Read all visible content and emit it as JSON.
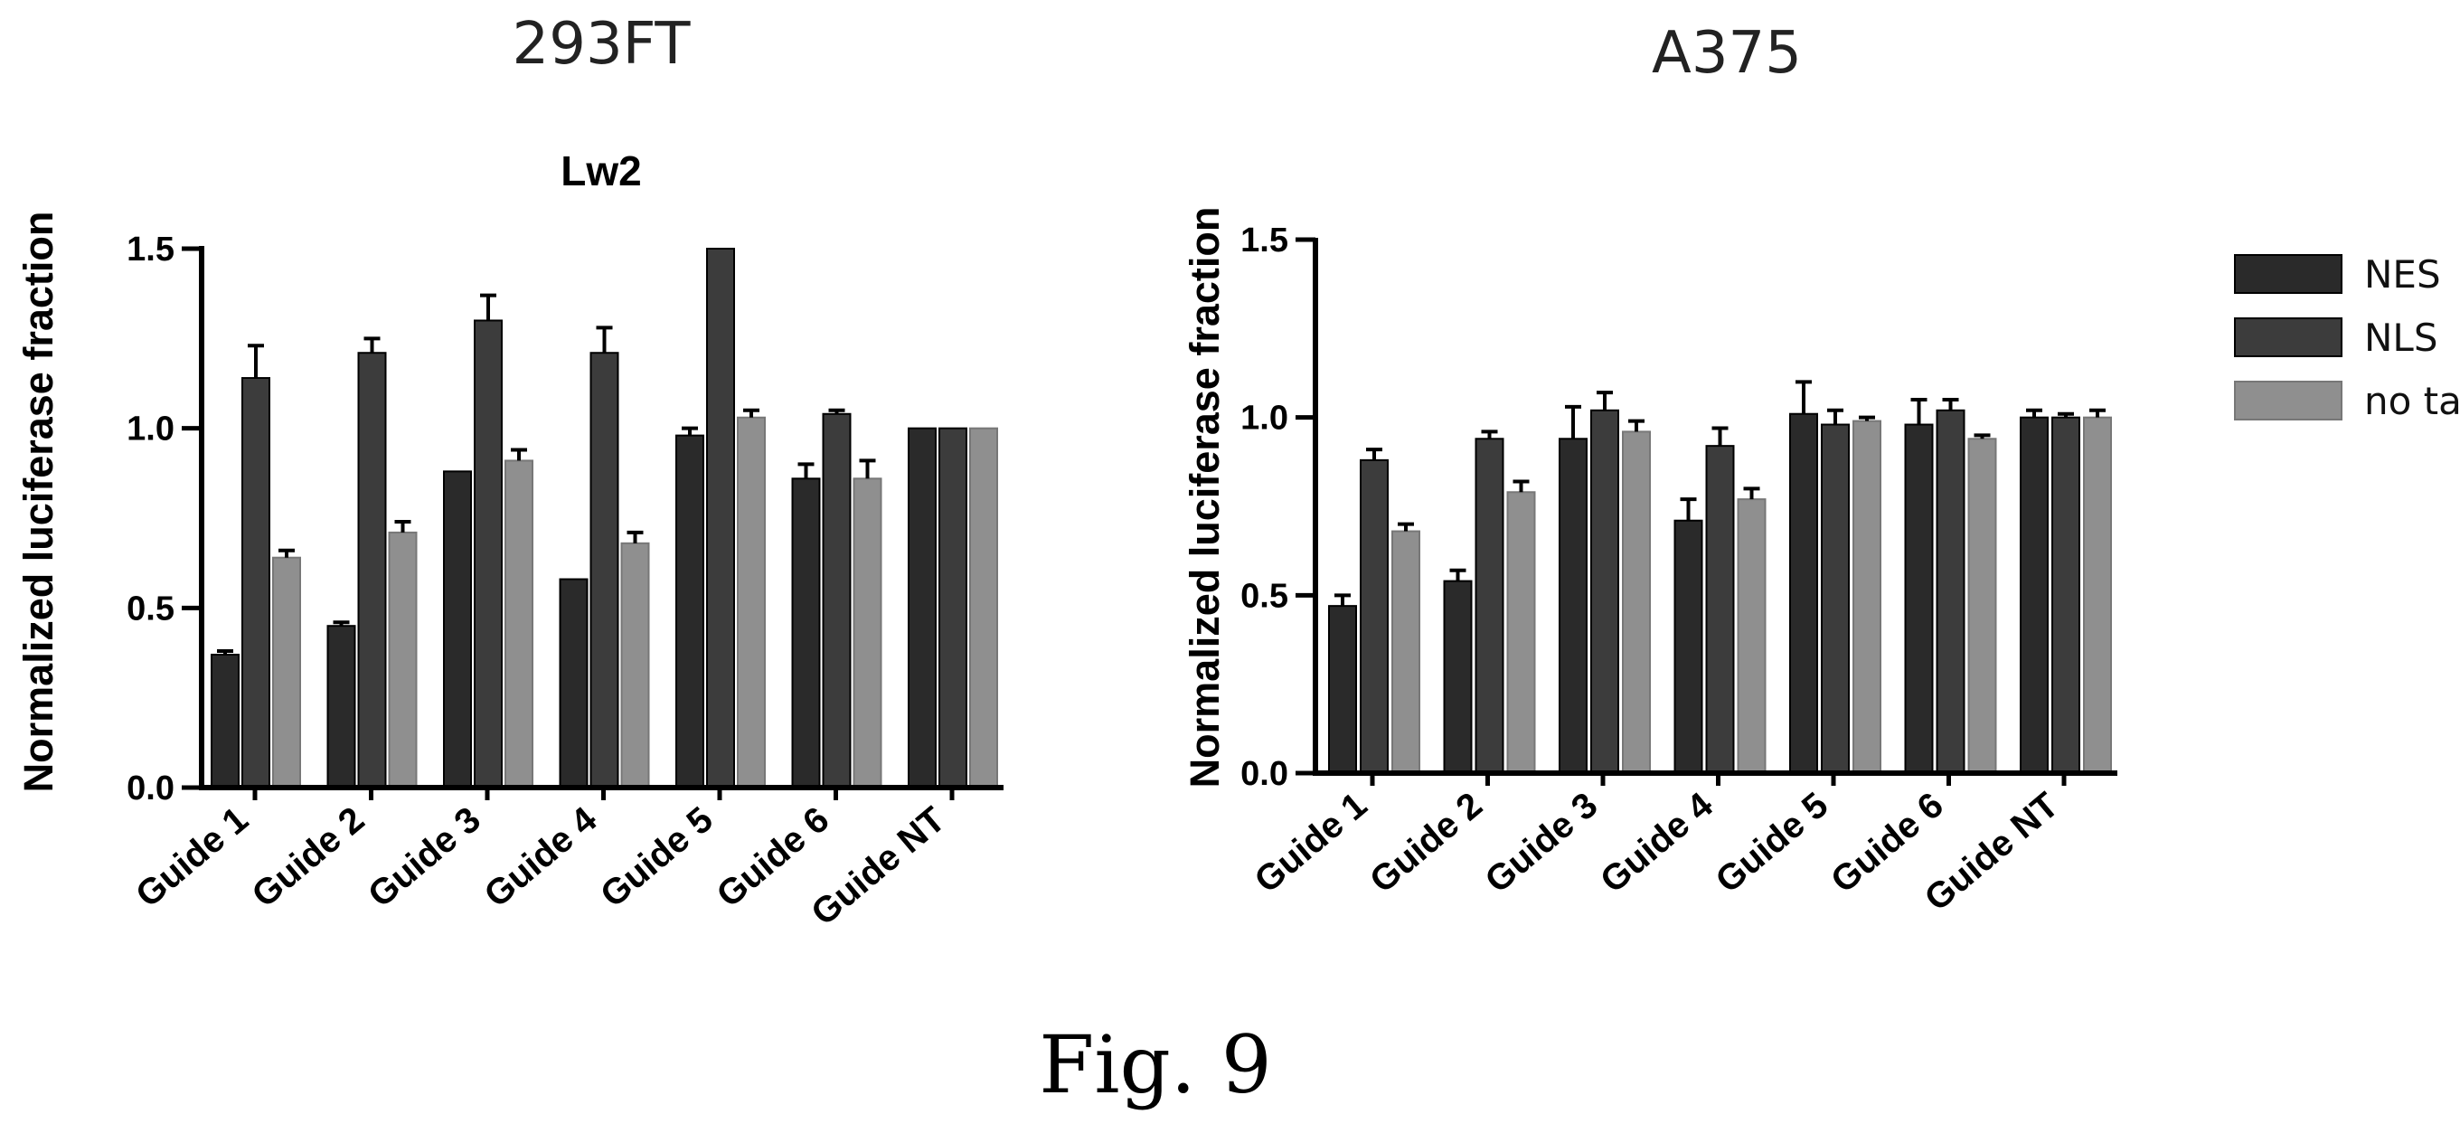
{
  "figure_caption": "Fig. 9",
  "legend": [
    {
      "label": "NES",
      "color": "#2a2a2a"
    },
    {
      "label": "NLS",
      "color": "#3c3c3c"
    },
    {
      "label": "no tag",
      "color": "#8f8f8f"
    }
  ],
  "chart_data": [
    {
      "type": "bar",
      "title": "293FT",
      "subtitle": "Lw2",
      "ylabel": "Normalized luciferase fraction",
      "ylim": [
        0,
        1.5
      ],
      "yticks": [
        "0.0",
        "0.5",
        "1.0",
        "1.5"
      ],
      "categories": [
        "Guide 1",
        "Guide 2",
        "Guide 3",
        "Guide 4",
        "Guide 5",
        "Guide 6",
        "Guide NT"
      ],
      "series": [
        {
          "name": "NES",
          "values": [
            0.37,
            0.45,
            0.88,
            0.58,
            0.98,
            0.86,
            1.0
          ],
          "errors": [
            0.01,
            0.01,
            0.0,
            0.0,
            0.02,
            0.04,
            0.0
          ]
        },
        {
          "name": "NLS",
          "values": [
            1.14,
            1.21,
            1.3,
            1.21,
            1.5,
            1.04,
            1.0
          ],
          "errors": [
            0.09,
            0.04,
            0.07,
            0.07,
            0.0,
            0.01,
            0.0
          ]
        },
        {
          "name": "no tag",
          "values": [
            0.64,
            0.71,
            0.91,
            0.68,
            1.03,
            0.86,
            1.0
          ],
          "errors": [
            0.02,
            0.03,
            0.03,
            0.03,
            0.02,
            0.05,
            0.0
          ]
        }
      ]
    },
    {
      "type": "bar",
      "title": "A375",
      "subtitle": "",
      "ylabel": "Normalized luciferase fraction",
      "ylim": [
        0,
        1.5
      ],
      "yticks": [
        "0.0",
        "0.5",
        "1.0",
        "1.5"
      ],
      "categories": [
        "Guide 1",
        "Guide 2",
        "Guide 3",
        "Guide 4",
        "Guide 5",
        "Guide 6",
        "Guide NT"
      ],
      "series": [
        {
          "name": "NES",
          "values": [
            0.47,
            0.54,
            0.94,
            0.71,
            1.01,
            0.98,
            1.0
          ],
          "errors": [
            0.03,
            0.03,
            0.09,
            0.06,
            0.09,
            0.07,
            0.02
          ]
        },
        {
          "name": "NLS",
          "values": [
            0.88,
            0.94,
            1.02,
            0.92,
            0.98,
            1.02,
            1.0
          ],
          "errors": [
            0.03,
            0.02,
            0.05,
            0.05,
            0.04,
            0.03,
            0.01
          ]
        },
        {
          "name": "no tag",
          "values": [
            0.68,
            0.79,
            0.96,
            0.77,
            0.99,
            0.94,
            1.0
          ],
          "errors": [
            0.02,
            0.03,
            0.03,
            0.03,
            0.01,
            0.01,
            0.02
          ]
        }
      ]
    }
  ]
}
